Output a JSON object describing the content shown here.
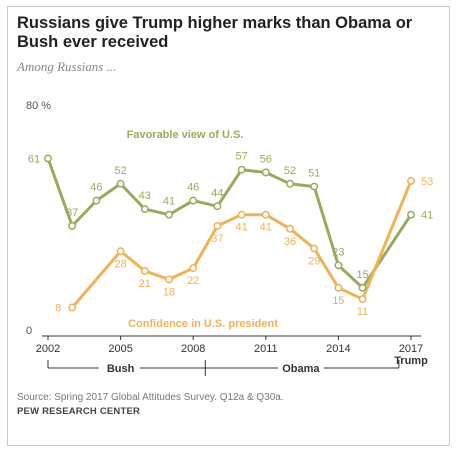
{
  "title": "Russians give Trump higher marks than Obama or Bush ever received",
  "subtitle": "Among Russians ...",
  "source": "Source: Spring 2017 Global Attitudes Survey. Q12a & Q30a.",
  "credit": "PEW RESEARCH CENTER",
  "colors": {
    "favorable": "#9aaa5c",
    "confidence": "#f0b254",
    "axis": "#333333",
    "text": "#555555"
  },
  "chart_data": {
    "type": "line",
    "ylim": [
      0,
      80
    ],
    "y_top_label": "80 %",
    "y_zero_label": "0",
    "x_ticks": [
      {
        "x": 2002,
        "label": "2002"
      },
      {
        "x": 2005,
        "label": "2005"
      },
      {
        "x": 2008,
        "label": "2008"
      },
      {
        "x": 2011,
        "label": "2011"
      },
      {
        "x": 2014,
        "label": "2014"
      },
      {
        "x": 2017,
        "label": "2017"
      }
    ],
    "presidents": [
      {
        "name": "Bush",
        "start": 2002,
        "end": 2008.5
      },
      {
        "name": "Obama",
        "start": 2008.5,
        "end": 2016.5
      },
      {
        "name": "Trump",
        "start": 2017,
        "end": 2017
      }
    ],
    "series": [
      {
        "name": "Favorable view of U.S.",
        "points": [
          {
            "x": 2002,
            "y": 61
          },
          {
            "x": 2003,
            "y": 37
          },
          {
            "x": 2004,
            "y": 46
          },
          {
            "x": 2005,
            "y": 52
          },
          {
            "x": 2006,
            "y": 43
          },
          {
            "x": 2007,
            "y": 41
          },
          {
            "x": 2008,
            "y": 46
          },
          {
            "x": 2009,
            "y": 44
          },
          {
            "x": 2010,
            "y": 57
          },
          {
            "x": 2011,
            "y": 56
          },
          {
            "x": 2012,
            "y": 52
          },
          {
            "x": 2013,
            "y": 51
          },
          {
            "x": 2014,
            "y": 23
          },
          {
            "x": 2015,
            "y": 15
          },
          {
            "x": 2017,
            "y": 41
          }
        ]
      },
      {
        "name": "Confidence in U.S. president",
        "points": [
          {
            "x": 2003,
            "y": 8
          },
          {
            "x": 2005,
            "y": 28
          },
          {
            "x": 2006,
            "y": 21
          },
          {
            "x": 2007,
            "y": 18
          },
          {
            "x": 2008,
            "y": 22
          },
          {
            "x": 2009,
            "y": 37
          },
          {
            "x": 2010,
            "y": 41
          },
          {
            "x": 2011,
            "y": 41
          },
          {
            "x": 2012,
            "y": 36
          },
          {
            "x": 2013,
            "y": 29
          },
          {
            "x": 2014,
            "y": 15
          },
          {
            "x": 2015,
            "y": 11
          },
          {
            "x": 2017,
            "y": 53
          }
        ]
      }
    ]
  }
}
